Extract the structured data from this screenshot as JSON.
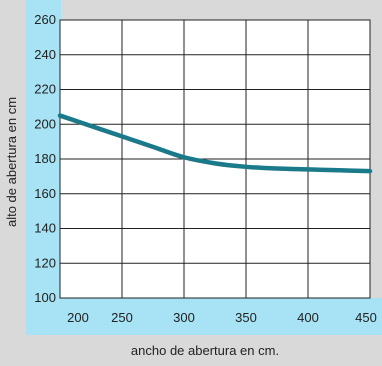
{
  "chart_data": {
    "type": "line",
    "xlabel": "ancho de abertura en cm.",
    "ylabel": "alto de abertura en cm",
    "xlim": [
      200,
      450
    ],
    "ylim": [
      100,
      260
    ],
    "xticks": [
      200,
      250,
      300,
      350,
      400,
      450
    ],
    "yticks": [
      100,
      120,
      140,
      160,
      180,
      200,
      220,
      240,
      260
    ],
    "grid": true,
    "legend": "none",
    "colors": {
      "background": "#d9d9d9",
      "axis_band": "#a7e3f4",
      "plot_bg": "#ffffff",
      "grid": "#222222",
      "line": "#1a7a8a"
    },
    "series": [
      {
        "x": [
          200,
          225,
          250,
          275,
          300,
          325,
          350,
          375,
          400,
          425,
          450
        ],
        "y": [
          205,
          199,
          193,
          187,
          181,
          177.5,
          175.5,
          174.5,
          174,
          173.5,
          173
        ]
      }
    ]
  }
}
